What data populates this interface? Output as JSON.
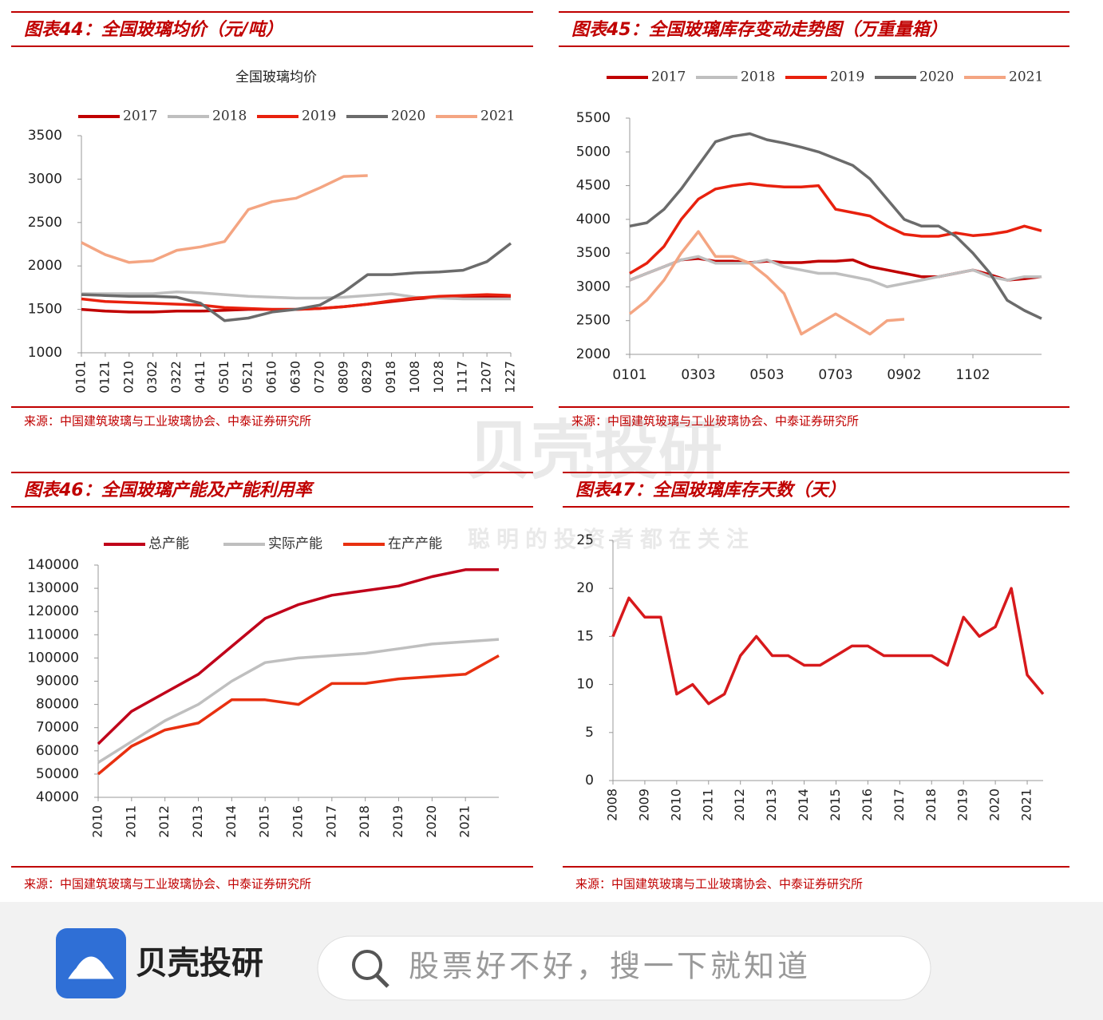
{
  "chart_data": [
    {
      "type": "line",
      "title": "图表44：全国玻璃均价（元/吨）",
      "subtitle": "全国玻璃均价",
      "legend": "top",
      "categories": [
        "0101",
        "0121",
        "0210",
        "0302",
        "0322",
        "0411",
        "0501",
        "0521",
        "0610",
        "0630",
        "0720",
        "0809",
        "0829",
        "0918",
        "1008",
        "1028",
        "1117",
        "1207",
        "1227"
      ],
      "series": [
        {
          "name": "2017",
          "color": "#c00000",
          "values": [
            1500,
            1480,
            1470,
            1470,
            1480,
            1480,
            1490,
            1500,
            1500,
            1500,
            1510,
            1530,
            1560,
            1590,
            1620,
            1640,
            1650,
            1650,
            1650
          ]
        },
        {
          "name": "2018",
          "color": "#bfbfbf",
          "values": [
            1680,
            1680,
            1680,
            1680,
            1700,
            1690,
            1670,
            1650,
            1640,
            1630,
            1630,
            1640,
            1660,
            1680,
            1640,
            1630,
            1620,
            1620,
            1620
          ]
        },
        {
          "name": "2019",
          "color": "#e8210e",
          "values": [
            1620,
            1590,
            1580,
            1570,
            1560,
            1550,
            1520,
            1510,
            1500,
            1500,
            1510,
            1530,
            1560,
            1600,
            1630,
            1650,
            1660,
            1670,
            1660
          ]
        },
        {
          "name": "2020",
          "color": "#6b6b6b",
          "values": [
            1670,
            1660,
            1650,
            1650,
            1640,
            1570,
            1370,
            1400,
            1470,
            1500,
            1550,
            1700,
            1900,
            1900,
            1920,
            1930,
            1950,
            2050,
            2260
          ]
        },
        {
          "name": "2021",
          "color": "#f4a582",
          "values": [
            2270,
            2130,
            2040,
            2060,
            2180,
            2220,
            2280,
            2650,
            2740,
            2780,
            2900,
            3030,
            3040,
            null,
            null,
            null,
            null,
            null,
            null
          ]
        }
      ],
      "ylim": [
        1000,
        3500
      ],
      "yticks": [
        1000,
        1500,
        2000,
        2500,
        3000,
        3500
      ],
      "source": "来源：中国建筑玻璃与工业玻璃协会、中泰证券研究所"
    },
    {
      "type": "line",
      "title": "图表45：全国玻璃库存变动走势图（万重量箱）",
      "legend": "top",
      "categories": [
        "0101",
        null,
        null,
        null,
        "0303",
        null,
        null,
        null,
        "0503",
        null,
        null,
        null,
        "0703",
        null,
        null,
        null,
        "0902",
        null,
        null,
        null,
        "1102",
        null,
        null,
        null,
        null
      ],
      "series": [
        {
          "name": "2017",
          "color": "#c00000",
          "values": [
            3100,
            3200,
            3300,
            3400,
            3420,
            3380,
            3380,
            3360,
            3380,
            3360,
            3360,
            3380,
            3380,
            3400,
            3300,
            3250,
            3200,
            3150,
            3150,
            3200,
            3250,
            3180,
            3100,
            3120,
            3150
          ]
        },
        {
          "name": "2018",
          "color": "#bfbfbf",
          "values": [
            3100,
            3200,
            3300,
            3400,
            3450,
            3350,
            3350,
            3350,
            3400,
            3300,
            3250,
            3200,
            3200,
            3150,
            3100,
            3000,
            3050,
            3100,
            3150,
            3200,
            3250,
            3150,
            3100,
            3150,
            3150
          ]
        },
        {
          "name": "2019",
          "color": "#e8210e",
          "values": [
            3200,
            3350,
            3600,
            4000,
            4300,
            4450,
            4500,
            4530,
            4500,
            4480,
            4480,
            4500,
            4150,
            4100,
            4050,
            3900,
            3780,
            3750,
            3750,
            3800,
            3760,
            3780,
            3820,
            3900,
            3830
          ]
        },
        {
          "name": "2020",
          "color": "#6b6b6b",
          "values": [
            3900,
            3950,
            4150,
            4450,
            4800,
            5150,
            5230,
            5270,
            5180,
            5130,
            5070,
            5000,
            4900,
            4800,
            4600,
            4300,
            4000,
            3900,
            3900,
            3750,
            3500,
            3200,
            2800,
            2650,
            2530
          ]
        },
        {
          "name": "2021",
          "color": "#f4a582",
          "values": [
            2600,
            2800,
            3100,
            3500,
            3820,
            3450,
            3450,
            3350,
            3150,
            2900,
            2300,
            2450,
            2600,
            2450,
            2300,
            2500,
            2520,
            null,
            null,
            null,
            null,
            null,
            null,
            null,
            null
          ]
        }
      ],
      "ylim": [
        2000,
        5500
      ],
      "yticks": [
        2000,
        2500,
        3000,
        3500,
        4000,
        4500,
        5000,
        5500
      ],
      "source": "来源：中国建筑玻璃与工业玻璃协会、中泰证券研究所"
    },
    {
      "type": "line",
      "title": "图表46：全国玻璃产能及产能利用率",
      "legend": "top",
      "categories": [
        "2010",
        "2011",
        "2012",
        "2013",
        "2014",
        "2015",
        "2016",
        "2017",
        "2018",
        "2019",
        "2020",
        "2021",
        null
      ],
      "series": [
        {
          "name": "总产能",
          "color": "#c0001a",
          "values": [
            63000,
            77000,
            85000,
            93000,
            105000,
            117000,
            123000,
            127000,
            129000,
            131000,
            135000,
            138000,
            138000
          ]
        },
        {
          "name": "实际产能",
          "color": "#bfbfbf",
          "values": [
            55000,
            64000,
            73000,
            80000,
            90000,
            98000,
            100000,
            101000,
            102000,
            104000,
            106000,
            107000,
            108000
          ]
        },
        {
          "name": "在产产能",
          "color": "#e83010",
          "values": [
            50000,
            62000,
            69000,
            72000,
            82000,
            82000,
            80000,
            89000,
            89000,
            91000,
            92000,
            93000,
            101000
          ]
        }
      ],
      "ylim": [
        40000,
        140000
      ],
      "yticks": [
        40000,
        50000,
        60000,
        70000,
        80000,
        90000,
        100000,
        110000,
        120000,
        130000,
        140000
      ],
      "source": "来源：中国建筑玻璃与工业玻璃协会、中泰证券研究所"
    },
    {
      "type": "line",
      "title": "图表47：全国玻璃库存天数（天）",
      "categories": [
        "2008",
        null,
        "2009",
        null,
        "2010",
        null,
        "2011",
        null,
        "2012",
        null,
        "2013",
        null,
        "2014",
        null,
        "2015",
        null,
        "2016",
        null,
        "2017",
        null,
        "2018",
        null,
        "2019",
        null,
        "2020",
        null,
        "2021",
        null
      ],
      "color": "#d7191c",
      "values": [
        15,
        19,
        17,
        17,
        9,
        10,
        8,
        9,
        13,
        15,
        13,
        13,
        12,
        12,
        13,
        14,
        14,
        13,
        13,
        13,
        13,
        12,
        17,
        15,
        16,
        20,
        11,
        9
      ],
      "ylim": [
        0,
        25
      ],
      "yticks": [
        0,
        5,
        10,
        15,
        20,
        25
      ],
      "source": "来源：中国建筑玻璃与工业玻璃协会、中泰证券研究所"
    }
  ],
  "watermark": {
    "brand": "贝壳投研",
    "slogan": "聪明的投资者都在关注"
  },
  "footer": {
    "brand": "贝壳投研",
    "search_placeholder": "股票好不好，搜一下就知道"
  }
}
